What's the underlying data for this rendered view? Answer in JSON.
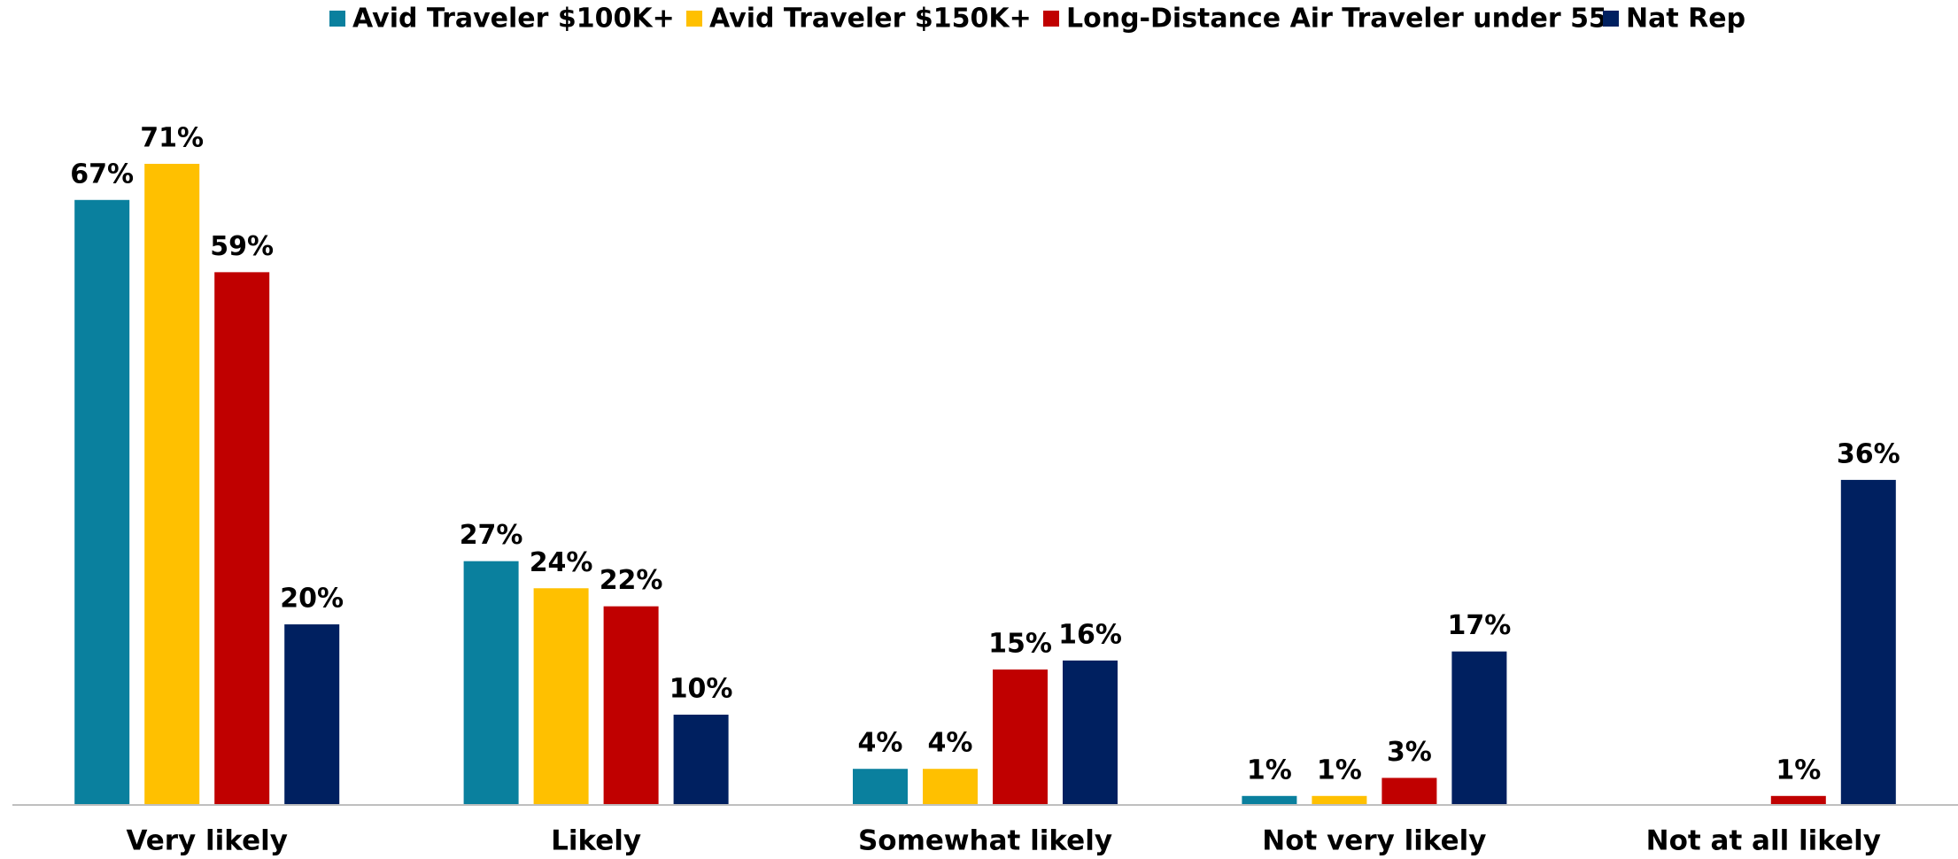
{
  "chart_data": {
    "type": "bar",
    "categories": [
      "Very likely",
      "Likely",
      "Somewhat likely",
      "Not very likely",
      "Not at all likely"
    ],
    "series": [
      {
        "name": "Avid Traveler $100K+",
        "color": "#0a809e",
        "values": [
          67,
          27,
          4,
          1,
          null
        ],
        "value_labels": [
          "67%",
          "27%",
          "4%",
          "1%",
          null
        ]
      },
      {
        "name": "Avid Traveler $150K+",
        "color": "#ffc000",
        "values": [
          71,
          24,
          4,
          1,
          null
        ],
        "value_labels": [
          "71%",
          "24%",
          "4%",
          "1%",
          null
        ]
      },
      {
        "name": "Long-Distance Air Traveler under 55",
        "color": "#c00000",
        "values": [
          59,
          22,
          15,
          3,
          1
        ],
        "value_labels": [
          "59%",
          "22%",
          "15%",
          "3%",
          "1%"
        ]
      },
      {
        "name": "Nat Rep",
        "color": "#002060",
        "values": [
          20,
          10,
          16,
          17,
          36
        ],
        "value_labels": [
          "20%",
          "10%",
          "16%",
          "17%",
          "36%"
        ]
      }
    ],
    "legend": "top"
  }
}
